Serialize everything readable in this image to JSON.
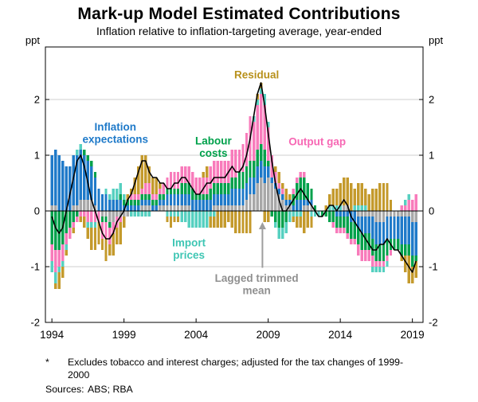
{
  "page": {
    "title": "Mark-up Model Estimated Contributions",
    "subtitle": "Inflation relative to inflation-targeting average, year-ended",
    "footnote": {
      "marker": "*",
      "text": "Excludes tobacco and interest charges; adjusted for the tax changes of 1999-2000"
    },
    "sources": {
      "label": "Sources:",
      "text": "ABS; RBA"
    }
  },
  "chart_data": {
    "type": "bar",
    "subtype": "stacked-bar-with-total-line",
    "title": "Mark-up Model Estimated Contributions",
    "subtitle": "Inflation relative to inflation-targeting average, year-ended",
    "unit_left": "ppt",
    "unit_right": "ppt",
    "frequency": "quarterly",
    "x_start": 1994.0,
    "x_step": 0.25,
    "xticks": [
      1994,
      1999,
      2004,
      2009,
      2014,
      2019
    ],
    "yticks": [
      -2,
      -1,
      0,
      1,
      2
    ],
    "ylim": [
      -2,
      2.94
    ],
    "grid": "horizontal",
    "line": {
      "name": "Inflation relative to inflation-targeting average (year-ended)",
      "color": "#000000",
      "derived": "sum_of_series"
    },
    "series": [
      {
        "name": "Lagged trimmed mean",
        "color": "#a8a8a8",
        "values": [
          0.1,
          0.1,
          0.0,
          0.0,
          0.0,
          0.0,
          0.1,
          0.1,
          0.2,
          0.2,
          0.2,
          0.2,
          0.1,
          0.0,
          -0.1,
          -0.1,
          -0.2,
          -0.2,
          -0.1,
          -0.1,
          -0.1,
          -0.1,
          0.0,
          0.0,
          0.0,
          0.1,
          0.1,
          0.1,
          0.0,
          0.0,
          0.1,
          0.1,
          0.1,
          0.1,
          0.1,
          0.1,
          0.1,
          0.1,
          0.1,
          0.0,
          0.0,
          0.0,
          0.0,
          0.0,
          0.0,
          0.1,
          0.1,
          0.1,
          0.1,
          0.1,
          0.1,
          0.1,
          0.1,
          0.1,
          0.2,
          0.3,
          0.3,
          0.5,
          0.6,
          0.5,
          0.6,
          0.5,
          0.4,
          0.3,
          0.2,
          0.1,
          0.1,
          0.0,
          0.0,
          0.0,
          0.1,
          0.1,
          0.1,
          0.0,
          0.0,
          0.0,
          0.0,
          0.0,
          0.0,
          0.0,
          0.0,
          0.1,
          0.1,
          0.0,
          0.0,
          -0.1,
          -0.1,
          -0.1,
          -0.1,
          -0.1,
          -0.2,
          -0.2,
          -0.2,
          -0.1,
          -0.1,
          -0.1,
          -0.1,
          -0.1,
          -0.1,
          -0.1,
          -0.2,
          -0.2
        ]
      },
      {
        "name": "Inflation expectations",
        "color": "#1f7ac9",
        "values": [
          0.9,
          1.0,
          1.0,
          0.9,
          0.8,
          0.8,
          0.9,
          0.9,
          0.9,
          0.8,
          0.7,
          0.6,
          0.5,
          0.4,
          0.3,
          0.3,
          0.2,
          0.2,
          0.2,
          0.2,
          0.1,
          0.1,
          0.1,
          0.1,
          0.1,
          0.1,
          0.1,
          0.1,
          0.1,
          0.1,
          0.1,
          0.1,
          0.2,
          0.2,
          0.2,
          0.2,
          0.2,
          0.2,
          0.2,
          0.2,
          0.2,
          0.2,
          0.2,
          0.2,
          0.2,
          0.2,
          0.2,
          0.2,
          0.2,
          0.2,
          0.3,
          0.3,
          0.3,
          0.3,
          0.3,
          0.3,
          0.3,
          0.3,
          0.3,
          0.3,
          0.2,
          0.1,
          0.1,
          0.1,
          0.1,
          0.1,
          0.1,
          0.1,
          0.2,
          0.2,
          0.1,
          0.1,
          0.1,
          0.0,
          0.0,
          0.0,
          0.0,
          0.0,
          0.0,
          -0.1,
          -0.1,
          -0.1,
          -0.1,
          -0.2,
          -0.2,
          -0.2,
          -0.3,
          -0.3,
          -0.3,
          -0.4,
          -0.4,
          -0.4,
          -0.4,
          -0.4,
          -0.4,
          -0.4,
          -0.4,
          -0.5,
          -0.5,
          -0.5,
          -0.6,
          -0.6
        ]
      },
      {
        "name": "Labour costs",
        "color": "#00a14b",
        "values": [
          -0.6,
          -0.7,
          -0.7,
          -0.6,
          -0.4,
          -0.3,
          -0.2,
          -0.1,
          0.0,
          0.1,
          0.1,
          0.1,
          0.1,
          0.0,
          -0.1,
          -0.1,
          -0.1,
          0.0,
          0.0,
          0.1,
          0.1,
          0.1,
          0.1,
          0.1,
          0.1,
          0.1,
          0.1,
          0.1,
          0.1,
          0.1,
          0.1,
          0.1,
          0.1,
          0.1,
          0.1,
          0.1,
          0.2,
          0.2,
          0.2,
          0.2,
          0.1,
          0.1,
          0.1,
          0.1,
          0.2,
          0.2,
          0.2,
          0.2,
          0.2,
          0.2,
          0.2,
          0.2,
          0.3,
          0.3,
          0.3,
          0.3,
          0.3,
          0.3,
          0.3,
          0.3,
          0.1,
          -0.1,
          -0.2,
          -0.3,
          -0.3,
          -0.2,
          0.0,
          0.2,
          0.3,
          0.4,
          0.4,
          0.3,
          0.2,
          0.1,
          0.0,
          -0.1,
          -0.1,
          -0.2,
          -0.2,
          -0.2,
          -0.2,
          -0.2,
          -0.3,
          -0.3,
          -0.3,
          -0.3,
          -0.3,
          -0.3,
          -0.3,
          -0.3,
          -0.3,
          -0.3,
          -0.3,
          -0.3,
          -0.2,
          -0.2,
          -0.2,
          -0.2,
          -0.2,
          -0.2,
          -0.2,
          -0.1
        ]
      },
      {
        "name": "Output gap",
        "color": "#f87bbb",
        "values": [
          -0.3,
          -0.4,
          -0.3,
          -0.3,
          -0.2,
          -0.2,
          -0.1,
          -0.1,
          -0.1,
          -0.1,
          -0.2,
          -0.2,
          -0.2,
          -0.2,
          -0.3,
          -0.3,
          -0.3,
          -0.2,
          -0.2,
          -0.1,
          0.0,
          0.0,
          0.1,
          0.1,
          0.1,
          0.1,
          0.2,
          0.2,
          0.1,
          0.1,
          0.1,
          0.2,
          0.2,
          0.3,
          0.3,
          0.3,
          0.3,
          0.3,
          0.3,
          0.3,
          0.3,
          0.3,
          0.3,
          0.3,
          0.4,
          0.4,
          0.4,
          0.4,
          0.4,
          0.4,
          0.5,
          0.5,
          0.4,
          0.5,
          0.6,
          0.8,
          0.7,
          0.8,
          0.9,
          0.8,
          0.6,
          0.4,
          0.2,
          0.1,
          0.1,
          0.0,
          0.0,
          0.1,
          0.1,
          0.1,
          0.1,
          0.0,
          0.0,
          0.0,
          0.0,
          0.0,
          0.0,
          0.0,
          -0.1,
          -0.1,
          -0.1,
          -0.1,
          -0.1,
          -0.1,
          -0.1,
          -0.2,
          -0.2,
          -0.2,
          -0.2,
          -0.2,
          -0.1,
          -0.1,
          -0.1,
          -0.1,
          -0.1,
          0.0,
          0.0,
          0.1,
          0.1,
          0.2,
          0.2,
          0.3
        ]
      },
      {
        "name": "Import prices",
        "color": "#56d0c0",
        "values": [
          -0.2,
          -0.2,
          -0.1,
          -0.1,
          -0.1,
          0.0,
          0.0,
          0.1,
          0.1,
          0.0,
          -0.1,
          -0.1,
          -0.1,
          0.0,
          0.0,
          0.1,
          0.1,
          0.2,
          0.2,
          0.2,
          0.1,
          0.0,
          -0.1,
          -0.1,
          -0.1,
          -0.1,
          -0.1,
          -0.1,
          0.0,
          0.0,
          0.0,
          0.0,
          -0.1,
          -0.1,
          -0.1,
          -0.1,
          -0.2,
          -0.2,
          -0.3,
          -0.3,
          -0.3,
          -0.3,
          -0.3,
          -0.3,
          -0.1,
          -0.1,
          0.0,
          0.0,
          0.0,
          0.0,
          0.0,
          0.0,
          0.0,
          0.0,
          0.0,
          0.0,
          0.1,
          0.1,
          0.1,
          0.2,
          0.1,
          0.0,
          -0.1,
          -0.2,
          -0.2,
          -0.2,
          -0.2,
          -0.1,
          -0.1,
          -0.1,
          0.0,
          0.0,
          -0.1,
          -0.1,
          -0.1,
          0.0,
          0.0,
          0.1,
          0.1,
          0.1,
          0.1,
          0.0,
          0.0,
          0.0,
          0.1,
          0.1,
          0.1,
          0.1,
          0.0,
          -0.1,
          -0.1,
          -0.1,
          -0.1,
          -0.1,
          0.0,
          0.0,
          0.0,
          0.0,
          0.1,
          0.1,
          0.0,
          0.0
        ]
      },
      {
        "name": "Residual",
        "color": "#c49a2c",
        "values": [
          0.0,
          -0.1,
          -0.3,
          -0.2,
          -0.1,
          0.0,
          -0.1,
          0.0,
          -0.1,
          -0.2,
          -0.2,
          -0.4,
          -0.4,
          -0.4,
          -0.2,
          -0.4,
          -0.2,
          -0.4,
          -0.3,
          -0.4,
          -0.2,
          0.1,
          0.1,
          0.3,
          0.5,
          0.6,
          0.5,
          0.3,
          0.3,
          0.3,
          0.1,
          0.0,
          -0.1,
          -0.2,
          -0.1,
          -0.1,
          0.0,
          0.0,
          0.0,
          0.0,
          0.0,
          0.0,
          0.1,
          0.2,
          -0.2,
          -0.2,
          -0.3,
          -0.3,
          -0.3,
          -0.2,
          -0.3,
          -0.4,
          -0.4,
          -0.4,
          -0.4,
          -0.4,
          0.0,
          0.1,
          0.1,
          -0.2,
          -0.2,
          0.0,
          0.1,
          0.2,
          0.1,
          0.2,
          0.1,
          -0.1,
          -0.2,
          -0.2,
          -0.4,
          -0.3,
          -0.2,
          0.0,
          0.0,
          0.0,
          0.1,
          0.2,
          0.3,
          0.3,
          0.4,
          0.5,
          0.5,
          0.5,
          0.3,
          0.4,
          0.4,
          0.3,
          0.3,
          0.4,
          0.4,
          0.5,
          0.5,
          0.5,
          0.2,
          0.0,
          0.0,
          -0.1,
          -0.3,
          -0.5,
          -0.3,
          -0.3
        ]
      }
    ],
    "annotations": [
      {
        "lines": [
          "Residual"
        ],
        "color": "#b8911c",
        "x_year": 2008.2,
        "y_value": 2.44
      },
      {
        "lines": [
          "Inflation",
          "expectations"
        ],
        "color": "#1f7ac9",
        "x_year": 1998.4,
        "y_value": 1.4
      },
      {
        "lines": [
          "Labour",
          "costs"
        ],
        "color": "#00a14b",
        "x_year": 2005.2,
        "y_value": 1.15
      },
      {
        "lines": [
          "Output gap"
        ],
        "color": "#f768b4",
        "x_year": 2012.4,
        "y_value": 1.24
      },
      {
        "lines": [
          "Import",
          "prices"
        ],
        "color": "#3fc6b4",
        "x_year": 2003.5,
        "y_value": -0.68
      },
      {
        "lines": [
          "Lagged trimmed",
          "mean"
        ],
        "color": "#8f8f8f",
        "x_year": 2008.2,
        "y_value": -1.32
      }
    ],
    "arrow": {
      "x_year": 2008.6,
      "from_value": -1.02,
      "to_value": -0.2,
      "color": "#9e9e9e"
    }
  }
}
